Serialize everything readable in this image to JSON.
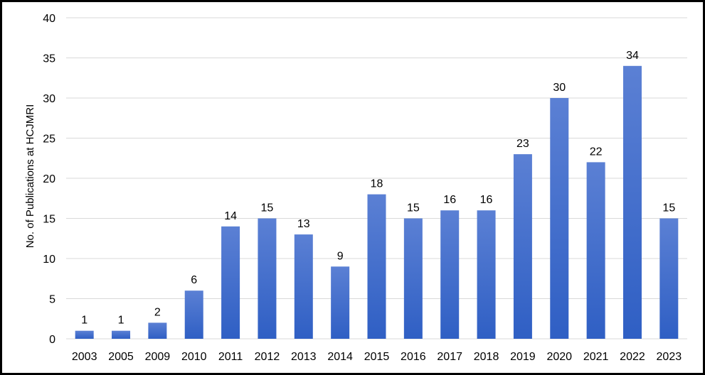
{
  "chart_data": {
    "type": "bar",
    "title": "",
    "xlabel": "",
    "ylabel": "No. of Publications at HCJMRI",
    "categories": [
      "2003",
      "2005",
      "2009",
      "2010",
      "2011",
      "2012",
      "2013",
      "2014",
      "2015",
      "2016",
      "2017",
      "2018",
      "2019",
      "2020",
      "2021",
      "2022",
      "2023"
    ],
    "values": [
      1,
      1,
      2,
      6,
      14,
      15,
      13,
      9,
      18,
      15,
      16,
      16,
      23,
      30,
      22,
      34,
      15
    ],
    "ylim": [
      0,
      40
    ],
    "yticks": [
      0,
      5,
      10,
      15,
      20,
      25,
      30,
      35,
      40
    ],
    "grid": true,
    "legend": "none",
    "data_labels": true,
    "bar_color_top": "#5b80d4",
    "bar_color_bottom": "#2f5fc4",
    "gridline_color": "#d9d9d9",
    "border_color": "#000000"
  }
}
